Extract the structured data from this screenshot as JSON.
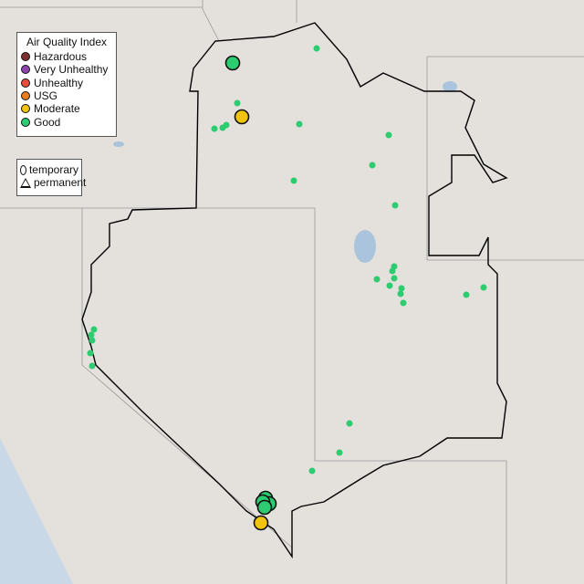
{
  "legend": {
    "title": "Air Quality Index",
    "categories": [
      {
        "label": "Hazardous",
        "color": "#7e3030"
      },
      {
        "label": "Very Unhealthy",
        "color": "#8e44ad"
      },
      {
        "label": "Unhealthy",
        "color": "#e74c3c"
      },
      {
        "label": "USG",
        "color": "#e67e22"
      },
      {
        "label": "Moderate",
        "color": "#f1c40f"
      },
      {
        "label": "Good",
        "color": "#2ecc71"
      }
    ],
    "shapes": [
      {
        "label": "temporary",
        "shape": "circle"
      },
      {
        "label": "permanent",
        "shape": "triangle"
      }
    ]
  },
  "monitors": {
    "temporary": [
      "Good",
      "Moderate",
      "Good",
      "Good",
      "Good",
      "Good",
      "Moderate"
    ],
    "permanent_small": [
      "Good",
      "Good",
      "Good",
      "Good",
      "Good",
      "Good",
      "Good",
      "Good",
      "Good",
      "Good",
      "Good",
      "Good",
      "Good",
      "Good",
      "Good",
      "Good",
      "Good",
      "Good",
      "Good",
      "Good",
      "Good",
      "Good",
      "Good",
      "Good",
      "Good",
      "Good",
      "Good",
      "Good"
    ]
  }
}
